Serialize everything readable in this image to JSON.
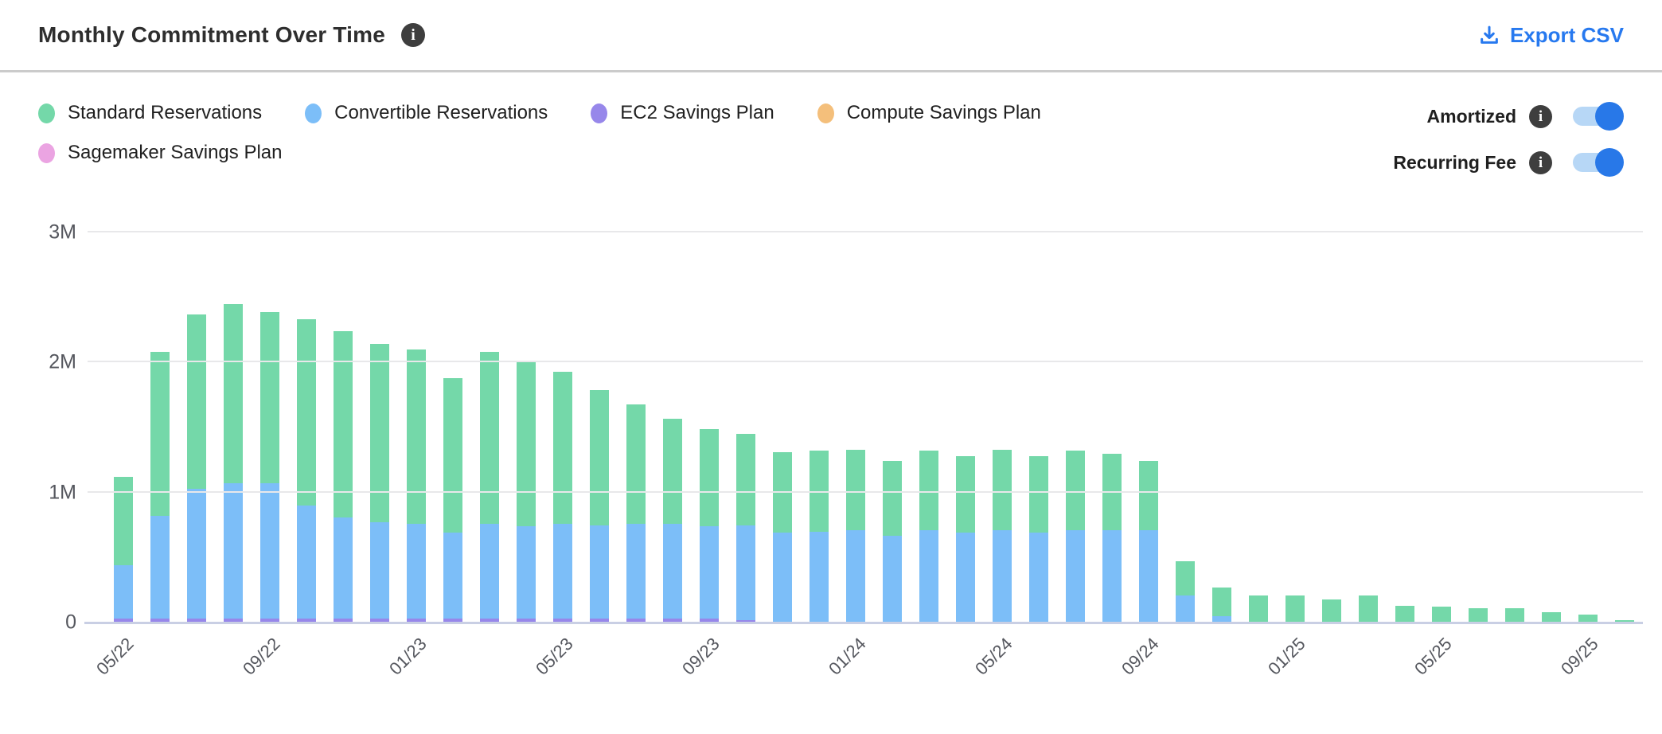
{
  "header": {
    "title": "Monthly Commitment Over Time",
    "export_label": "Export CSV"
  },
  "colors": {
    "standard_reservations": "#74d8a9",
    "convertible_reservations": "#7cbef8",
    "ec2_savings_plan": "#9787ea",
    "compute_savings_plan": "#f4bf7b",
    "sagemaker_savings_plan": "#eba4e2",
    "accent_blue": "#2779ef",
    "toggle_on": "#2878e8",
    "toggle_track": "#b7d7f6",
    "info_badge": "#3e3e3e",
    "gridline": "#e8e8ea",
    "axis_baseline": "#c9cfe4"
  },
  "legend": {
    "rows": [
      [
        "Standard Reservations",
        "Convertible Reservations",
        "EC2 Savings Plan",
        "Compute Savings Plan"
      ],
      [
        "Sagemaker Savings Plan"
      ]
    ]
  },
  "toggles": [
    {
      "label": "Amortized",
      "state": "on"
    },
    {
      "label": "Recurring Fee",
      "state": "on"
    }
  ],
  "chart_data": {
    "type": "bar",
    "stacked": true,
    "title": "Monthly Commitment Over Time",
    "xlabel": "",
    "ylabel": "",
    "y_max": 3000000,
    "y_ticks": [
      "0",
      "1M",
      "2M",
      "3M"
    ],
    "grid": true,
    "legend_position": "top-left",
    "x": [
      "05/22",
      "06/22",
      "07/22",
      "08/22",
      "09/22",
      "10/22",
      "11/22",
      "12/22",
      "01/23",
      "02/23",
      "03/23",
      "04/23",
      "05/23",
      "06/23",
      "07/23",
      "08/23",
      "09/23",
      "10/23",
      "11/23",
      "12/23",
      "01/24",
      "02/24",
      "03/24",
      "04/24",
      "05/24",
      "06/24",
      "07/24",
      "08/24",
      "09/24",
      "10/24",
      "11/24",
      "12/24",
      "01/25",
      "02/25",
      "03/25",
      "04/25",
      "05/25",
      "06/25",
      "07/25",
      "08/25",
      "09/25",
      "10/25"
    ],
    "x_tick_labels": [
      "05/22",
      "09/22",
      "01/23",
      "05/23",
      "09/23",
      "01/24",
      "05/24",
      "09/24",
      "01/25",
      "05/25",
      "09/25"
    ],
    "x_tick_every": 4,
    "series": [
      {
        "name": "Standard Reservations",
        "color": "#74d8a9",
        "values": [
          680000,
          1260000,
          1340000,
          1380000,
          1320000,
          1430000,
          1430000,
          1370000,
          1340000,
          1190000,
          1320000,
          1260000,
          1170000,
          1040000,
          920000,
          810000,
          750000,
          700000,
          620000,
          620000,
          620000,
          570000,
          610000,
          590000,
          620000,
          590000,
          610000,
          590000,
          530000,
          260000,
          220000,
          210000,
          210000,
          180000,
          210000,
          130000,
          120000,
          110000,
          110000,
          80000,
          60000,
          20000
        ]
      },
      {
        "name": "Convertible Reservations",
        "color": "#7cbef8",
        "values": [
          410000,
          790000,
          1000000,
          1040000,
          1040000,
          870000,
          780000,
          740000,
          730000,
          660000,
          730000,
          710000,
          730000,
          720000,
          730000,
          730000,
          710000,
          730000,
          690000,
          700000,
          710000,
          670000,
          710000,
          690000,
          710000,
          690000,
          710000,
          710000,
          710000,
          210000,
          50000,
          0,
          0,
          0,
          0,
          0,
          0,
          0,
          0,
          0,
          0,
          0
        ]
      },
      {
        "name": "EC2 Savings Plan",
        "color": "#9787ea",
        "values": [
          30000,
          30000,
          30000,
          30000,
          30000,
          30000,
          30000,
          30000,
          30000,
          30000,
          30000,
          30000,
          30000,
          30000,
          30000,
          30000,
          30000,
          20000,
          0,
          0,
          0,
          0,
          0,
          0,
          0,
          0,
          0,
          0,
          0,
          0,
          0,
          0,
          0,
          0,
          0,
          0,
          0,
          0,
          0,
          0,
          0,
          0
        ]
      },
      {
        "name": "Compute Savings Plan",
        "color": "#f4bf7b",
        "values": [
          0,
          0,
          0,
          0,
          0,
          0,
          0,
          0,
          0,
          0,
          0,
          0,
          0,
          0,
          0,
          0,
          0,
          0,
          0,
          0,
          0,
          0,
          0,
          0,
          0,
          0,
          0,
          0,
          0,
          0,
          0,
          0,
          0,
          0,
          0,
          0,
          0,
          0,
          0,
          0,
          0,
          0
        ]
      },
      {
        "name": "Sagemaker Savings Plan",
        "color": "#eba4e2",
        "values": [
          0,
          0,
          0,
          0,
          0,
          0,
          0,
          0,
          0,
          0,
          0,
          0,
          0,
          0,
          0,
          0,
          0,
          0,
          0,
          0,
          0,
          0,
          0,
          0,
          0,
          0,
          0,
          0,
          0,
          0,
          0,
          0,
          0,
          0,
          0,
          0,
          0,
          0,
          0,
          0,
          0,
          0
        ]
      }
    ]
  }
}
